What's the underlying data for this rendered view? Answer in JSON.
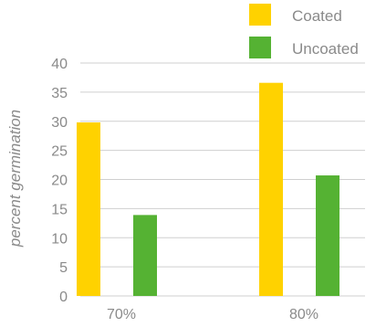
{
  "chart_data": {
    "type": "bar",
    "categories": [
      "70%",
      "80%"
    ],
    "series": [
      {
        "name": "Coated",
        "values": [
          29.8,
          36.6
        ],
        "color": "#FFD200"
      },
      {
        "name": "Uncoated",
        "values": [
          13.9,
          20.7
        ],
        "color": "#55B233"
      }
    ],
    "ylabel": "percent germination",
    "xlabel": "",
    "ylim": [
      0,
      40
    ],
    "yticks": [
      0,
      5,
      10,
      15,
      20,
      25,
      30,
      35,
      40
    ],
    "grid": true,
    "legend_position": "top-right"
  }
}
